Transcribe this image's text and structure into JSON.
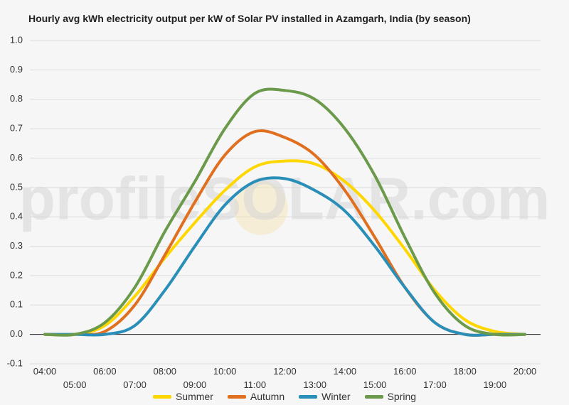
{
  "chart_data": {
    "type": "line",
    "title": "Hourly avg kWh electricity output per kW of Solar PV installed in Azamgarh, India (by season)",
    "watermark": "profileSOLAR.com",
    "ylim": [
      -0.1,
      1.0
    ],
    "yticks": [
      "1.0",
      "0.9",
      "0.8",
      "0.7",
      "0.6",
      "0.5",
      "0.4",
      "0.3",
      "0.2",
      "0.1",
      "0.0",
      "-0.1"
    ],
    "x": [
      "04:00",
      "05:00",
      "06:00",
      "07:00",
      "08:00",
      "09:00",
      "10:00",
      "11:00",
      "12:00",
      "13:00",
      "14:00",
      "15:00",
      "16:00",
      "17:00",
      "18:00",
      "19:00",
      "20:00"
    ],
    "grid": true,
    "legend_position": "bottom",
    "series": [
      {
        "name": "Summer",
        "color": "#ffd700",
        "values": [
          0.0,
          0.0,
          0.03,
          0.13,
          0.26,
          0.38,
          0.49,
          0.57,
          0.59,
          0.58,
          0.52,
          0.42,
          0.29,
          0.15,
          0.05,
          0.01,
          0.0
        ]
      },
      {
        "name": "Autumn",
        "color": "#e07020",
        "values": [
          0.0,
          0.0,
          0.01,
          0.1,
          0.27,
          0.45,
          0.61,
          0.69,
          0.67,
          0.61,
          0.49,
          0.33,
          0.16,
          0.04,
          0.0,
          0.0,
          0.0
        ]
      },
      {
        "name": "Winter",
        "color": "#2a8fb8",
        "values": [
          0.0,
          0.0,
          0.0,
          0.03,
          0.15,
          0.3,
          0.44,
          0.52,
          0.53,
          0.49,
          0.42,
          0.3,
          0.16,
          0.04,
          0.0,
          0.0,
          0.0
        ]
      },
      {
        "name": "Spring",
        "color": "#6b9a4b",
        "values": [
          0.0,
          0.0,
          0.04,
          0.16,
          0.35,
          0.52,
          0.7,
          0.82,
          0.83,
          0.8,
          0.7,
          0.54,
          0.33,
          0.14,
          0.03,
          0.0,
          0.0
        ]
      }
    ]
  }
}
